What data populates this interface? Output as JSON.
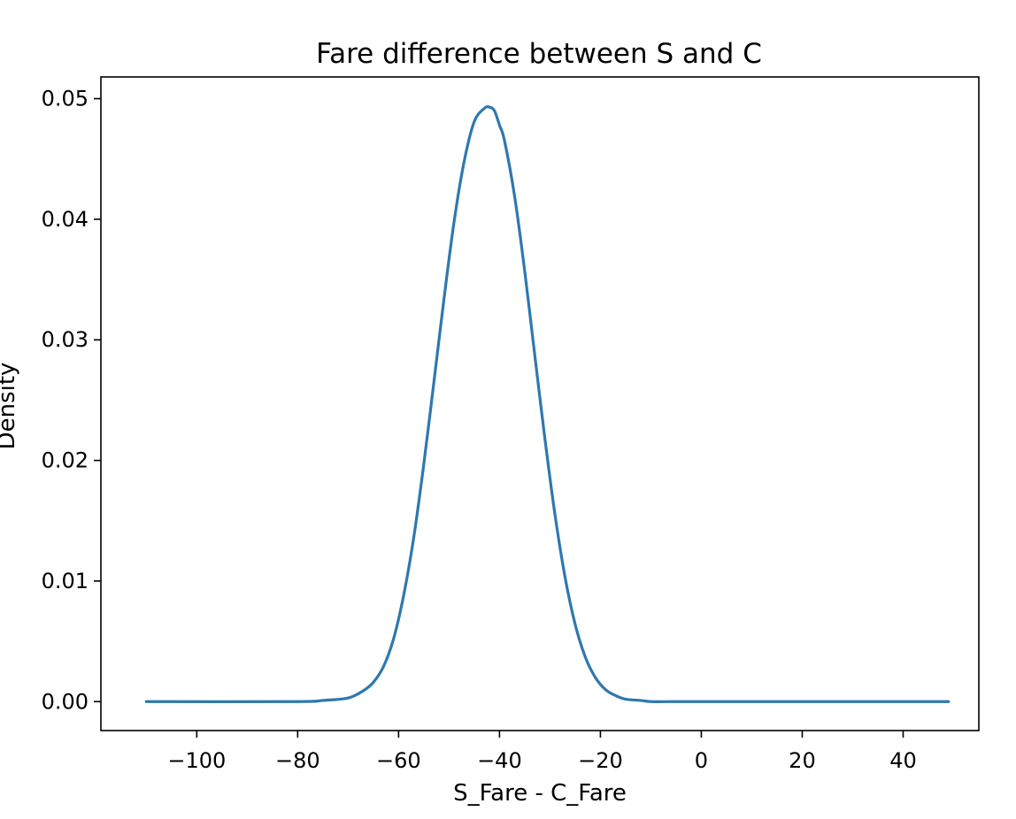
{
  "chart_data": {
    "type": "line",
    "title": "Fare difference between S and C",
    "xlabel": "S_Fare - C_Fare",
    "ylabel": "Density",
    "xlim": [
      -119,
      55
    ],
    "ylim": [
      -0.0024,
      0.0518
    ],
    "xticks": [
      -100,
      -80,
      -60,
      -40,
      -20,
      0,
      20,
      40
    ],
    "xtick_labels": [
      "−100",
      "−80",
      "−60",
      "−40",
      "−20",
      "0",
      "20",
      "40"
    ],
    "yticks": [
      0.0,
      0.01,
      0.02,
      0.03,
      0.04,
      0.05
    ],
    "ytick_labels": [
      "0.00",
      "0.01",
      "0.02",
      "0.03",
      "0.04",
      "0.05"
    ],
    "grid": false,
    "legend": "none",
    "color": "#2e78b0",
    "series": [
      {
        "x": [
          -110,
          -80,
          -75,
          -70,
          -67,
          -65,
          -63,
          -61,
          -59,
          -57,
          -55,
          -53,
          -51,
          -49,
          -47,
          -45,
          -43,
          -42,
          -41,
          -40,
          -39,
          -37,
          -35,
          -33,
          -31,
          -29,
          -27,
          -25,
          -23,
          -21,
          -19,
          -17,
          -15,
          -12,
          -10,
          -5,
          0,
          49
        ],
        "y": [
          0.0,
          0.0,
          0.0001,
          0.0003,
          0.0009,
          0.0016,
          0.0029,
          0.0052,
          0.0088,
          0.0136,
          0.0197,
          0.0265,
          0.0334,
          0.0398,
          0.0448,
          0.0481,
          0.0492,
          0.0493,
          0.049,
          0.0478,
          0.0465,
          0.0419,
          0.0357,
          0.0287,
          0.0218,
          0.0155,
          0.0103,
          0.0064,
          0.0037,
          0.002,
          0.001,
          0.0005,
          0.0002,
          0.0001,
          0.0,
          0.0,
          0.0,
          0.0
        ]
      }
    ]
  }
}
